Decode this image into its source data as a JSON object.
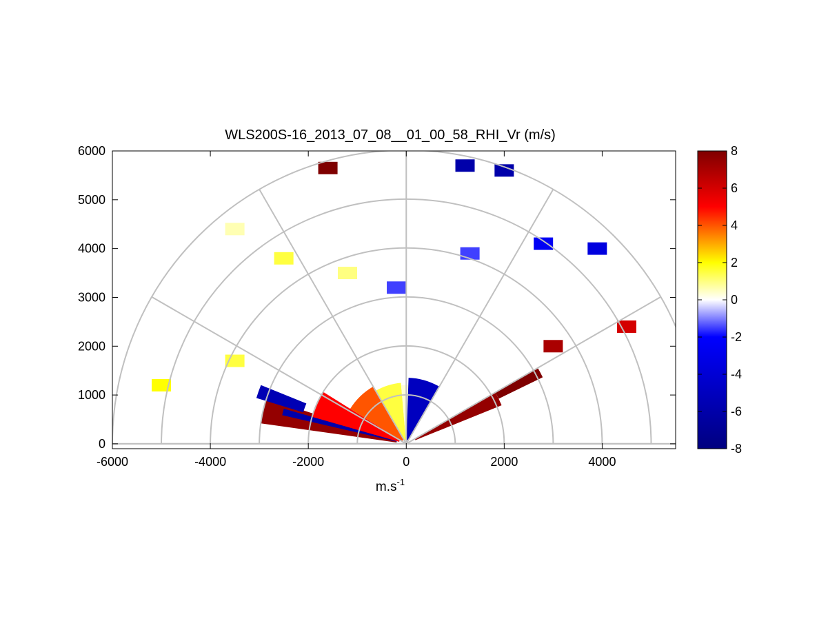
{
  "chart_data": {
    "type": "heatmap",
    "title": "WLS200S-16_2013_07_08__01_00_58_RHI_Vr (m/s)",
    "xlabel": "m.s",
    "xlabel_superscript": "-1",
    "ylabel": "",
    "xlim": [
      -6000,
      5500
    ],
    "ylim": [
      -100,
      6000
    ],
    "xticks": [
      "-6000",
      "-4000",
      "-2000",
      "0",
      "2000",
      "4000"
    ],
    "yticks": [
      "0",
      "1000",
      "2000",
      "3000",
      "4000",
      "5000",
      "6000"
    ],
    "polar_grid": {
      "range_rings": [
        1000,
        2000,
        3000,
        4000,
        5000,
        6000
      ],
      "spokes_deg": [
        0,
        30,
        60,
        90,
        120,
        150,
        180
      ]
    },
    "colorbar": {
      "range": [
        -8,
        8
      ],
      "ticks": [
        "8",
        "6",
        "4",
        "2",
        "0",
        "-2",
        "-4",
        "-6",
        "-8"
      ],
      "colors": [
        "#00007f",
        "#0000ff",
        "#ffffff",
        "#ffff00",
        "#ff0000",
        "#7f0000"
      ]
    },
    "sectors": [
      {
        "az": [
          162,
          172
        ],
        "range": [
          200,
          3000
        ],
        "vr": 7.5
      },
      {
        "az": [
          158,
          163
        ],
        "range": [
          2200,
          3200
        ],
        "vr": -5.5
      },
      {
        "az": [
          164,
          167
        ],
        "range": [
          200,
          2600
        ],
        "vr": -6
      },
      {
        "az": [
          148,
          164
        ],
        "range": [
          150,
          2000
        ],
        "vr": 5
      },
      {
        "az": [
          120,
          148
        ],
        "range": [
          100,
          1350
        ],
        "vr": 4
      },
      {
        "az": [
          95,
          120
        ],
        "range": [
          80,
          1250
        ],
        "vr": 1.5
      },
      {
        "az": [
          88,
          95
        ],
        "range": [
          60,
          1200
        ],
        "vr": 0.3
      },
      {
        "az": [
          60,
          88
        ],
        "range": [
          80,
          1350
        ],
        "vr": -5
      },
      {
        "az": [
          22,
          30
        ],
        "range": [
          200,
          2100
        ],
        "vr": 7.5
      },
      {
        "az": [
          26,
          30
        ],
        "range": [
          2100,
          3100
        ],
        "vr": 8
      }
    ],
    "patches": [
      {
        "x": -2500,
        "y": 3800,
        "vr": 1.5
      },
      {
        "x": -1200,
        "y": 3500,
        "vr": 1
      },
      {
        "x": -3500,
        "y": 4400,
        "vr": 0.6
      },
      {
        "x": -200,
        "y": 3200,
        "vr": -1.5
      },
      {
        "x": 1300,
        "y": 3900,
        "vr": -1.5
      },
      {
        "x": 2800,
        "y": 4100,
        "vr": -2.5
      },
      {
        "x": 3900,
        "y": 4000,
        "vr": -3.5
      },
      {
        "x": -5000,
        "y": 1200,
        "vr": 2
      },
      {
        "x": -3500,
        "y": 1700,
        "vr": 1.5
      },
      {
        "x": 4500,
        "y": 2400,
        "vr": 6
      },
      {
        "x": 3000,
        "y": 2000,
        "vr": 7
      },
      {
        "x": -1600,
        "y": 5650,
        "vr": 8
      },
      {
        "x": 1200,
        "y": 5700,
        "vr": -6
      },
      {
        "x": 2000,
        "y": 5600,
        "vr": -6
      }
    ]
  }
}
